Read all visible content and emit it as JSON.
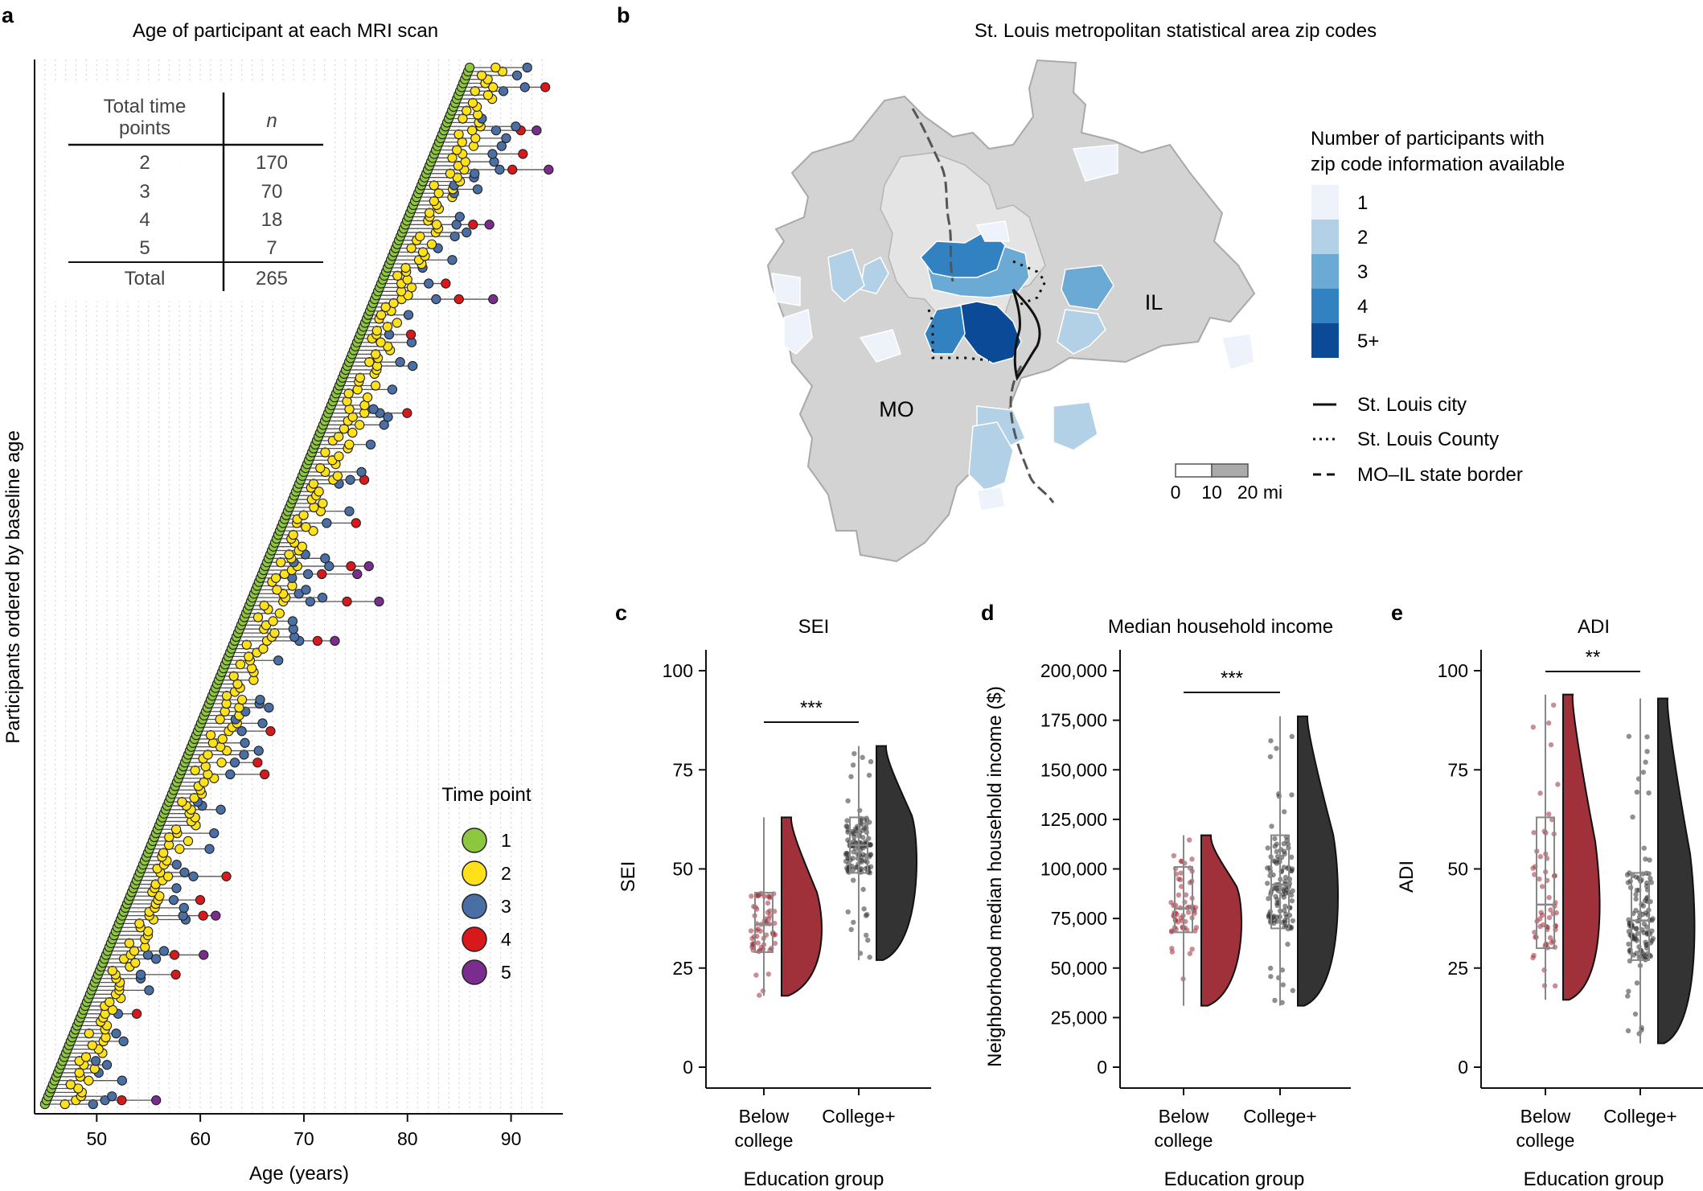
{
  "panel_a": {
    "label": "a",
    "title": "Age of participant at each MRI scan",
    "ylabel": "Participants ordered by baseline age",
    "xlabel": "Age (years)",
    "xticks": [
      "50",
      "60",
      "70",
      "80",
      "90"
    ],
    "table": {
      "header_left_1": "Total time",
      "header_left_2": "points",
      "header_right": "n",
      "rows": [
        [
          "2",
          "170"
        ],
        [
          "3",
          "70"
        ],
        [
          "4",
          "18"
        ],
        [
          "5",
          "7"
        ]
      ],
      "total_label": "Total",
      "total_value": "265"
    },
    "legend": {
      "title": "Time point",
      "items": [
        {
          "label": "1",
          "color": "#8dc63f"
        },
        {
          "label": "2",
          "color": "#ffe11a"
        },
        {
          "label": "3",
          "color": "#4a6fa5"
        },
        {
          "label": "4",
          "color": "#d7191c"
        },
        {
          "label": "5",
          "color": "#7b2d8e"
        }
      ]
    }
  },
  "panel_b": {
    "label": "b",
    "title": "St. Louis metropolitan statistical area zip codes",
    "legend_title_1": "Number of participants with",
    "legend_title_2": "zip code information available",
    "legend_items": [
      {
        "label": "1",
        "color": "#eef3fb"
      },
      {
        "label": "2",
        "color": "#b3d1e6"
      },
      {
        "label": "3",
        "color": "#6aaad5"
      },
      {
        "label": "4",
        "color": "#3281c1"
      },
      {
        "label": "5+",
        "color": "#0b4a97"
      }
    ],
    "lines": [
      {
        "label": "St. Louis city"
      },
      {
        "label": "St. Louis County"
      },
      {
        "label": "MO–IL state border"
      }
    ],
    "state_mo": "MO",
    "state_il": "IL",
    "scale": {
      "l0": "0",
      "l10": "10",
      "l20": "20 mi"
    }
  },
  "panel_c": {
    "label": "c",
    "title": "SEI",
    "ylabel": "SEI",
    "xlabel": "Education group",
    "yticks": [
      "0",
      "25",
      "50",
      "75",
      "100"
    ],
    "significance": "***",
    "groups": [
      {
        "line1": "Below",
        "line2": "college"
      },
      {
        "line1": "College+",
        "line2": ""
      }
    ]
  },
  "panel_d": {
    "label": "d",
    "title": "Median household income",
    "ylabel": "Neighborhood median household income ($)",
    "xlabel": "Education group",
    "yticks": [
      "0",
      "25,000",
      "50,000",
      "75,000",
      "100,000",
      "125,000",
      "150,000",
      "175,000",
      "200,000"
    ],
    "significance": "***",
    "groups": [
      {
        "line1": "Below",
        "line2": "college"
      },
      {
        "line1": "College+",
        "line2": ""
      }
    ]
  },
  "panel_e": {
    "label": "e",
    "title": "ADI",
    "ylabel": "ADI",
    "xlabel": "Education group",
    "yticks": [
      "0",
      "25",
      "50",
      "75",
      "100"
    ],
    "significance": "**",
    "groups": [
      {
        "line1": "Below",
        "line2": "college"
      },
      {
        "line1": "College+",
        "line2": ""
      }
    ]
  },
  "chart_data": [
    {
      "type": "scatter",
      "title": "Age of participant at each MRI scan",
      "xlabel": "Age (years)",
      "ylabel": "Participants ordered by baseline age",
      "xlim": [
        44,
        95
      ],
      "note": "265 participants; rows ordered by baseline age from ~45 to ~86 years; repeated scans connected by lines",
      "time_point_counts": [
        {
          "total_time_points": 2,
          "n": 170
        },
        {
          "total_time_points": 3,
          "n": 70
        },
        {
          "total_time_points": 4,
          "n": 18
        },
        {
          "total_time_points": 5,
          "n": 7
        }
      ]
    },
    {
      "type": "heatmap",
      "title": "St. Louis metropolitan statistical area zip codes",
      "legend": [
        "1",
        "2",
        "3",
        "4",
        "5+"
      ]
    },
    {
      "type": "box",
      "title": "SEI",
      "ylabel": "SEI",
      "ylim": [
        0,
        100
      ],
      "categories": [
        "Below college",
        "College+"
      ],
      "boxes": [
        {
          "name": "Below college",
          "min": 18,
          "q1": 29,
          "median": 36,
          "q3": 44,
          "max": 63
        },
        {
          "name": "College+",
          "min": 27,
          "q1": 49,
          "median": 56,
          "q3": 63,
          "max": 81
        }
      ],
      "significance": "***"
    },
    {
      "type": "box",
      "title": "Median household income",
      "ylabel": "Neighborhood median household income ($)",
      "ylim": [
        0,
        200000
      ],
      "categories": [
        "Below college",
        "College+"
      ],
      "boxes": [
        {
          "name": "Below college",
          "min": 31000,
          "q1": 68000,
          "median": 80000,
          "q3": 101000,
          "max": 117000
        },
        {
          "name": "College+",
          "min": 31000,
          "q1": 70000,
          "median": 92000,
          "q3": 117000,
          "max": 177000
        }
      ],
      "significance": "***"
    },
    {
      "type": "box",
      "title": "ADI",
      "ylabel": "ADI",
      "ylim": [
        0,
        100
      ],
      "categories": [
        "Below college",
        "College+"
      ],
      "boxes": [
        {
          "name": "Below college",
          "min": 17,
          "q1": 30,
          "median": 41,
          "q3": 63,
          "max": 94
        },
        {
          "name": "College+",
          "min": 6,
          "q1": 27,
          "median": 37,
          "q3": 49,
          "max": 93
        }
      ],
      "significance": "**"
    }
  ]
}
